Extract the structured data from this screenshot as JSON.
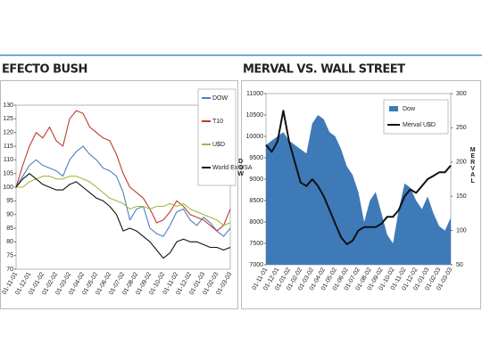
{
  "chart_data": [
    {
      "type": "line",
      "title": "EFECTO BUSH",
      "categories": [
        "01-11-01",
        null,
        "01-12-01",
        null,
        "01-01-02",
        null,
        "01-02-02",
        null,
        "01-03-02",
        null,
        "01-04-02",
        null,
        "01-05-02",
        null,
        "01-06-02",
        null,
        "01-07-02",
        null,
        "01-08-02",
        null,
        "01-09-02",
        null,
        "01-10-02",
        null,
        "01-11-02",
        null,
        "01-12-02",
        null,
        "01-01-03",
        null,
        "01-02-03",
        null,
        "01-03-03"
      ],
      "series": [
        {
          "name": "DOW",
          "color": "#4a7fc0",
          "values": [
            100,
            104,
            108,
            110,
            108,
            107,
            106,
            104,
            110,
            113,
            115,
            112,
            110,
            107,
            106,
            104,
            98,
            88,
            92,
            93,
            85,
            83,
            82,
            86,
            91,
            92,
            88,
            86,
            89,
            87,
            84,
            82,
            85
          ]
        },
        {
          "name": "T10",
          "color": "#c0392b",
          "values": [
            100,
            108,
            115,
            120,
            118,
            122,
            117,
            115,
            125,
            128,
            127,
            122,
            120,
            118,
            117,
            112,
            105,
            100,
            98,
            96,
            92,
            87,
            88,
            91,
            95,
            93,
            90,
            89,
            88,
            86,
            84,
            86,
            92
          ]
        },
        {
          "name": "U$D",
          "color": "#9bbb3b",
          "values": [
            100,
            100,
            102,
            103,
            104,
            104,
            103,
            103,
            104,
            104,
            103,
            102,
            100,
            98,
            96,
            95,
            94,
            92,
            93,
            93,
            92,
            93,
            93,
            94,
            93,
            94,
            92,
            91,
            90,
            89,
            88,
            86,
            87
          ]
        },
        {
          "name": "World Ex USA",
          "color": "#111111",
          "values": [
            100,
            103,
            105,
            103,
            101,
            100,
            99,
            99,
            101,
            102,
            100,
            98,
            96,
            95,
            93,
            90,
            84,
            85,
            84,
            82,
            80,
            77,
            74,
            76,
            80,
            81,
            80,
            80,
            79,
            78,
            78,
            77,
            78
          ]
        }
      ],
      "ylim": [
        70,
        130
      ],
      "yticks": [
        70,
        75,
        80,
        85,
        90,
        95,
        100,
        105,
        110,
        115,
        120,
        125,
        130
      ],
      "axis_label": "DOW",
      "legend": "right"
    },
    {
      "type": "combo",
      "title": "MERVAL VS. WALL STREET",
      "categories": [
        "01-11-01",
        null,
        "01-12-01",
        null,
        "01-01-02",
        null,
        "01-02-02",
        null,
        "01-03-02",
        null,
        "01-04-02",
        null,
        "01-05-02",
        null,
        "01-06-02",
        null,
        "01-07-02",
        null,
        "01-08-02",
        null,
        "01-09-02",
        null,
        "01-10-02",
        null,
        "01-11-02",
        null,
        "01-12-02",
        null,
        "01-01-03",
        null,
        "01-02-03",
        null,
        "01-03-03"
      ],
      "series": [
        {
          "name": "Dow",
          "type": "area",
          "color": "#3f7ab8",
          "values": [
            9800,
            9900,
            10000,
            10100,
            9900,
            9800,
            9700,
            9600,
            10300,
            10500,
            10400,
            10100,
            10000,
            9700,
            9300,
            9100,
            8700,
            8000,
            8500,
            8700,
            8200,
            7700,
            7500,
            8300,
            8900,
            8800,
            8500,
            8300,
            8600,
            8200,
            7900,
            7800,
            8100
          ]
        },
        {
          "name": "Merval U$D",
          "type": "line",
          "axis": "y2",
          "color": "#111111",
          "values": [
            225,
            215,
            230,
            275,
            230,
            200,
            170,
            165,
            175,
            165,
            150,
            130,
            110,
            90,
            80,
            85,
            100,
            105,
            105,
            105,
            110,
            120,
            120,
            130,
            150,
            160,
            155,
            165,
            175,
            180,
            185,
            185,
            195
          ]
        }
      ],
      "ylim": [
        7000,
        11000
      ],
      "yticks": [
        7000,
        7500,
        8000,
        8500,
        9000,
        9500,
        10000,
        10500,
        11000
      ],
      "y2lim": [
        50,
        300
      ],
      "y2ticks": [
        50,
        100,
        150,
        200,
        250,
        300
      ],
      "y2_label": "MERVAL",
      "legend": "top-right"
    }
  ]
}
